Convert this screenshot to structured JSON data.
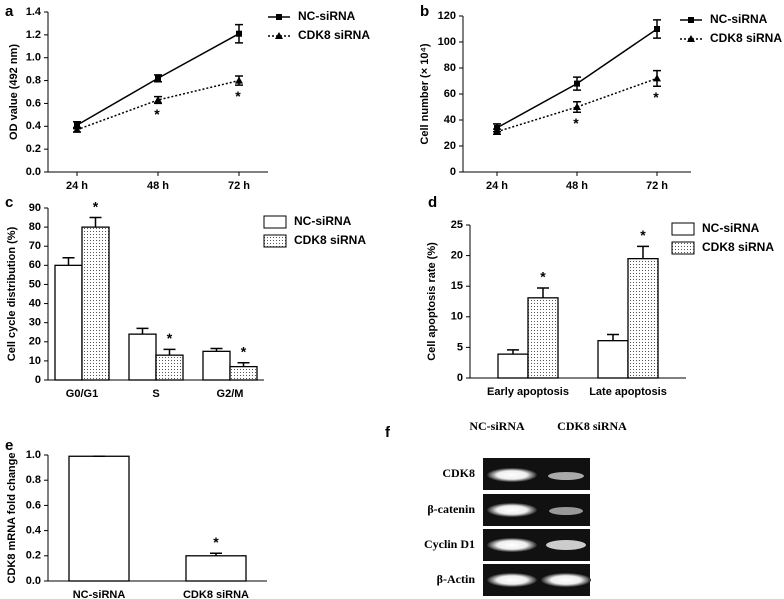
{
  "chart_data": [
    {
      "type": "line",
      "panel": "a",
      "ylabel": "OD value (492 nm)",
      "categories": [
        "24 h",
        "48 h",
        "72 h"
      ],
      "series": [
        {
          "name": "NC-siRNA",
          "color": "#000000",
          "line_style": "solid",
          "marker": "square",
          "values": [
            0.41,
            0.82,
            1.21
          ],
          "errors": [
            0.03,
            0.03,
            0.08
          ]
        },
        {
          "name": "CDK8 siRNA",
          "color": "#000000",
          "line_style": "dotted",
          "marker": "triangle",
          "values": [
            0.37,
            0.63,
            0.8
          ],
          "errors": [
            0.02,
            0.03,
            0.04
          ],
          "significance": [
            null,
            "*",
            "*"
          ]
        }
      ],
      "ylim": [
        0,
        1.4
      ],
      "yticks": [
        {
          "value": 0,
          "label": "0.0"
        },
        0.2,
        0.4,
        0.6,
        0.8,
        {
          "value": 1,
          "label": "1.0"
        },
        1.2,
        1.4
      ],
      "legend": "top-right"
    },
    {
      "type": "line",
      "panel": "b",
      "ylabel": "Cell number (× 10⁴)",
      "categories": [
        "24 h",
        "48 h",
        "72 h"
      ],
      "series": [
        {
          "name": "NC-siRNA",
          "color": "#000000",
          "line_style": "solid",
          "marker": "square",
          "values": [
            34,
            68,
            110
          ],
          "errors": [
            3,
            5,
            7
          ]
        },
        {
          "name": "CDK8  siRNA",
          "color": "#000000",
          "line_style": "dotted",
          "marker": "triangle",
          "values": [
            31,
            50,
            72
          ],
          "errors": [
            2,
            4,
            6
          ],
          "significance": [
            null,
            "*",
            "*"
          ]
        }
      ],
      "ylim": [
        0,
        120
      ],
      "yticks": [
        0,
        20,
        40,
        60,
        80,
        100,
        120
      ],
      "legend": "top-right"
    },
    {
      "type": "bar",
      "panel": "c",
      "ylabel": "Cell cycle distribution (%)",
      "categories": [
        "G0/G1",
        "S",
        "G2/M"
      ],
      "series": [
        {
          "name": "NC-siRNA",
          "color": "#000000",
          "fill": "white",
          "values": [
            60,
            24,
            15
          ],
          "errors": [
            4,
            3,
            1.5
          ]
        },
        {
          "name": "CDK8  siRNA",
          "color": "#000000",
          "fill": "dots",
          "values": [
            80,
            13,
            7
          ],
          "errors": [
            5,
            3,
            2
          ],
          "significance": [
            "*",
            "*",
            "*"
          ]
        }
      ],
      "ylim": [
        0,
        90
      ],
      "yticks": [
        0,
        10,
        20,
        30,
        40,
        50,
        60,
        70,
        80,
        90
      ],
      "legend": "top-right"
    },
    {
      "type": "bar",
      "panel": "d",
      "ylabel": "Cell apoptosis rate (%)",
      "categories": [
        "Early apoptosis",
        "Late apoptosis"
      ],
      "series": [
        {
          "name": "NC-siRNA",
          "color": "#000000",
          "fill": "white",
          "values": [
            3.9,
            6.1
          ],
          "errors": [
            0.7,
            1.0
          ]
        },
        {
          "name": "CDK8  siRNA",
          "color": "#000000",
          "fill": "dots",
          "values": [
            13.1,
            19.5
          ],
          "errors": [
            1.6,
            2.0
          ],
          "significance": [
            "*",
            "*"
          ]
        }
      ],
      "ylim": [
        0,
        25
      ],
      "yticks": [
        0,
        5,
        10,
        15,
        20,
        25
      ],
      "legend": "top-right"
    },
    {
      "type": "bar",
      "panel": "e",
      "ylabel": "CDK8 mRNA fold change",
      "categories": [
        "NC-siRNA",
        "CDK8 siRNA"
      ],
      "series": [
        {
          "color": "#000000",
          "fill": "white",
          "values": [
            0.99,
            0.2
          ],
          "errors": [
            0,
            0.02
          ],
          "significance": [
            null,
            "*"
          ]
        }
      ],
      "ylim": [
        0,
        1.0
      ],
      "yticks": [
        {
          "value": 0,
          "label": "0.0"
        },
        0.2,
        0.4,
        0.6,
        0.8,
        {
          "value": 1,
          "label": "1.0"
        }
      ]
    }
  ],
  "gel": {
    "panel": "f",
    "columns": [
      "NC-siRNA",
      "CDK8 siRNA"
    ],
    "rows": [
      "CDK8",
      "β-catenin",
      "Cyclin D1",
      "β-Actin"
    ]
  }
}
